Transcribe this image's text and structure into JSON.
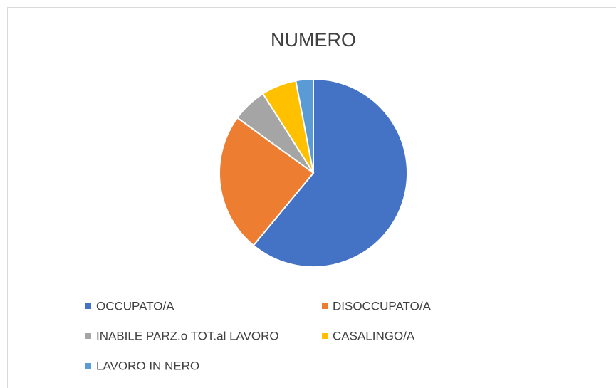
{
  "chart_data": {
    "type": "pie",
    "title": "NUMERO",
    "categories": [
      "OCCUPATO/A",
      "DISOCCUPATO/A",
      "INABILE PARZ.o TOT.al LAVORO",
      "CASALINGO/A",
      "LAVORO IN NERO"
    ],
    "values": [
      61,
      24,
      6,
      6,
      3
    ],
    "colors": [
      "#4472c4",
      "#ed7d31",
      "#a5a5a5",
      "#ffc000",
      "#5b9bd5"
    ],
    "legend": "bottom"
  }
}
